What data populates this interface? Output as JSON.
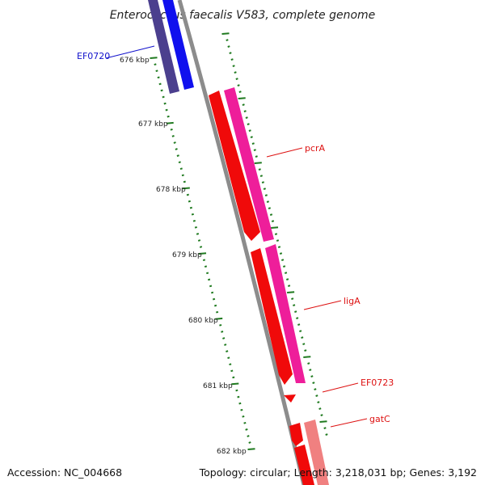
{
  "title": "Enterococcus faecalis V583, complete genome",
  "accession": "Accession: NC_004668",
  "summary": "Topology: circular; Length: 3,218,031 bp; Genes: 3,192",
  "colors": {
    "backbone": "#8c8c8c",
    "tick": "#1f7a1f",
    "label_red": "#dd1111",
    "label_blue": "#1111cc",
    "gene_blue_dark": "#4b3f8e",
    "gene_blue": "#1010ee",
    "gene_red": "#f00a0a",
    "gene_magenta": "#ee1e9a",
    "gene_pink": "#f08080"
  },
  "scale": {
    "unit": "kbp",
    "labels": [
      "676 kbp",
      "677 kbp",
      "678 kbp",
      "679 kbp",
      "680 kbp",
      "681 kbp",
      "682 kbp"
    ]
  },
  "genes": [
    {
      "name": "EF0720",
      "color": "label_blue"
    },
    {
      "name": "pcrA",
      "color": "label_red"
    },
    {
      "name": "ligA",
      "color": "label_red"
    },
    {
      "name": "EF0723",
      "color": "label_red"
    },
    {
      "name": "gatC",
      "color": "label_red"
    }
  ]
}
